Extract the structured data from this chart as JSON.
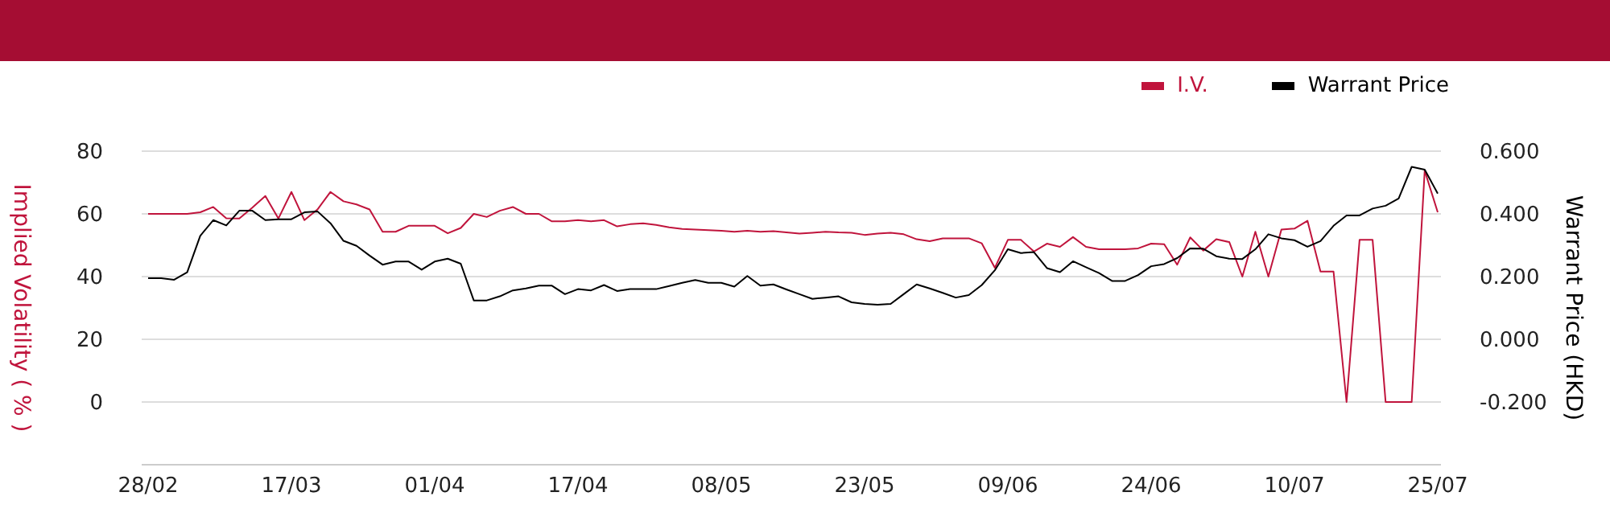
{
  "chart_data": {
    "type": "line",
    "xlabel": null,
    "ylabel": "Implied Volatility ( % )",
    "y2label": "Warrant Price (HKD)",
    "categories": [
      "28/02",
      null,
      null,
      null,
      null,
      null,
      null,
      null,
      null,
      null,
      null,
      "17/03",
      null,
      null,
      null,
      null,
      null,
      null,
      null,
      null,
      null,
      null,
      "01/04",
      null,
      null,
      null,
      null,
      null,
      null,
      null,
      null,
      null,
      null,
      "17/04",
      null,
      null,
      null,
      null,
      null,
      null,
      null,
      null,
      null,
      null,
      "08/05",
      null,
      null,
      null,
      null,
      null,
      null,
      null,
      null,
      null,
      null,
      "23/05",
      null,
      null,
      null,
      null,
      null,
      null,
      null,
      null,
      null,
      null,
      "09/06",
      null,
      null,
      null,
      null,
      null,
      null,
      null,
      null,
      null,
      null,
      "24/06",
      null,
      null,
      null,
      null,
      null,
      null,
      null,
      null,
      null,
      null,
      "10/07",
      null,
      null,
      null,
      null,
      null,
      null,
      null,
      null,
      null,
      null,
      "25/07"
    ],
    "series": [
      {
        "name": "I.V.",
        "color": "#c0143c",
        "values": [
          60,
          60,
          60,
          60,
          60.5,
          62.2,
          58.6,
          58.5,
          62,
          65.7,
          58.5,
          67,
          58,
          61.4,
          67,
          64,
          63,
          61.4,
          54.3,
          54.3,
          56.2,
          56.2,
          56.2,
          53.8,
          55.5,
          60,
          59,
          61,
          62.2,
          60,
          60,
          57.6,
          57.6,
          58,
          57.6,
          58,
          56,
          56.7,
          57,
          56.5,
          55.7,
          55.2,
          55,
          54.8,
          54.6,
          54.3,
          54.6,
          54.3,
          54.5,
          54.1,
          53.7,
          54,
          54.3,
          54.1,
          54,
          53.3,
          53.7,
          54,
          53.5,
          51.9,
          51.3,
          52.2,
          52.2,
          52.2,
          50.6,
          42.8,
          51.7,
          51.7,
          48,
          50.5,
          49.5,
          52.6,
          49.5,
          48.7,
          48.7,
          48.7,
          49,
          50.5,
          50.3,
          43.8,
          52.5,
          48.3,
          51.9,
          51,
          40,
          54.3,
          40,
          55,
          55.3,
          57.8,
          41.6,
          41.6,
          0,
          51.7,
          51.7,
          0,
          0,
          0,
          73.8,
          60.5
        ]
      },
      {
        "name": "Warrant Price",
        "color": "#000000",
        "axis": "y2",
        "values": [
          0.195,
          0.195,
          0.19,
          0.214,
          0.33,
          0.38,
          0.363,
          0.41,
          0.41,
          0.38,
          0.383,
          0.383,
          0.405,
          0.408,
          0.37,
          0.314,
          0.298,
          0.267,
          0.238,
          0.248,
          0.248,
          0.222,
          0.248,
          0.257,
          0.241,
          0.124,
          0.124,
          0.137,
          0.156,
          0.162,
          0.171,
          0.171,
          0.144,
          0.16,
          0.156,
          0.173,
          0.154,
          0.16,
          0.16,
          0.16,
          0.17,
          0.18,
          0.189,
          0.18,
          0.18,
          0.168,
          0.202,
          0.171,
          0.175,
          0.159,
          0.144,
          0.129,
          0.133,
          0.137,
          0.118,
          0.113,
          0.11,
          0.113,
          0.144,
          0.175,
          0.162,
          0.148,
          0.133,
          0.141,
          0.173,
          0.22,
          0.287,
          0.275,
          0.278,
          0.227,
          0.214,
          0.249,
          0.23,
          0.211,
          0.186,
          0.186,
          0.205,
          0.233,
          0.24,
          0.259,
          0.29,
          0.289,
          0.265,
          0.257,
          0.256,
          0.287,
          0.335,
          0.322,
          0.316,
          0.295,
          0.313,
          0.362,
          0.395,
          0.395,
          0.417,
          0.426,
          0.449,
          0.55,
          0.541,
          0.465
        ]
      }
    ],
    "ylim": [
      -20,
      80
    ],
    "yticks": [
      0,
      20,
      40,
      60,
      80
    ],
    "y2lim": [
      -0.4,
      0.6
    ],
    "y2ticks": [
      {
        "value": -0.2,
        "label": "-0.200"
      },
      {
        "value": 0,
        "label": "0.000"
      },
      {
        "value": 0.2,
        "label": "0.200"
      },
      {
        "value": 0.4,
        "label": "0.400"
      },
      {
        "value": 0.6,
        "label": "0.600"
      }
    ],
    "grid": "y",
    "legend": "top right",
    "marker": "none",
    "line_style": "solid"
  }
}
